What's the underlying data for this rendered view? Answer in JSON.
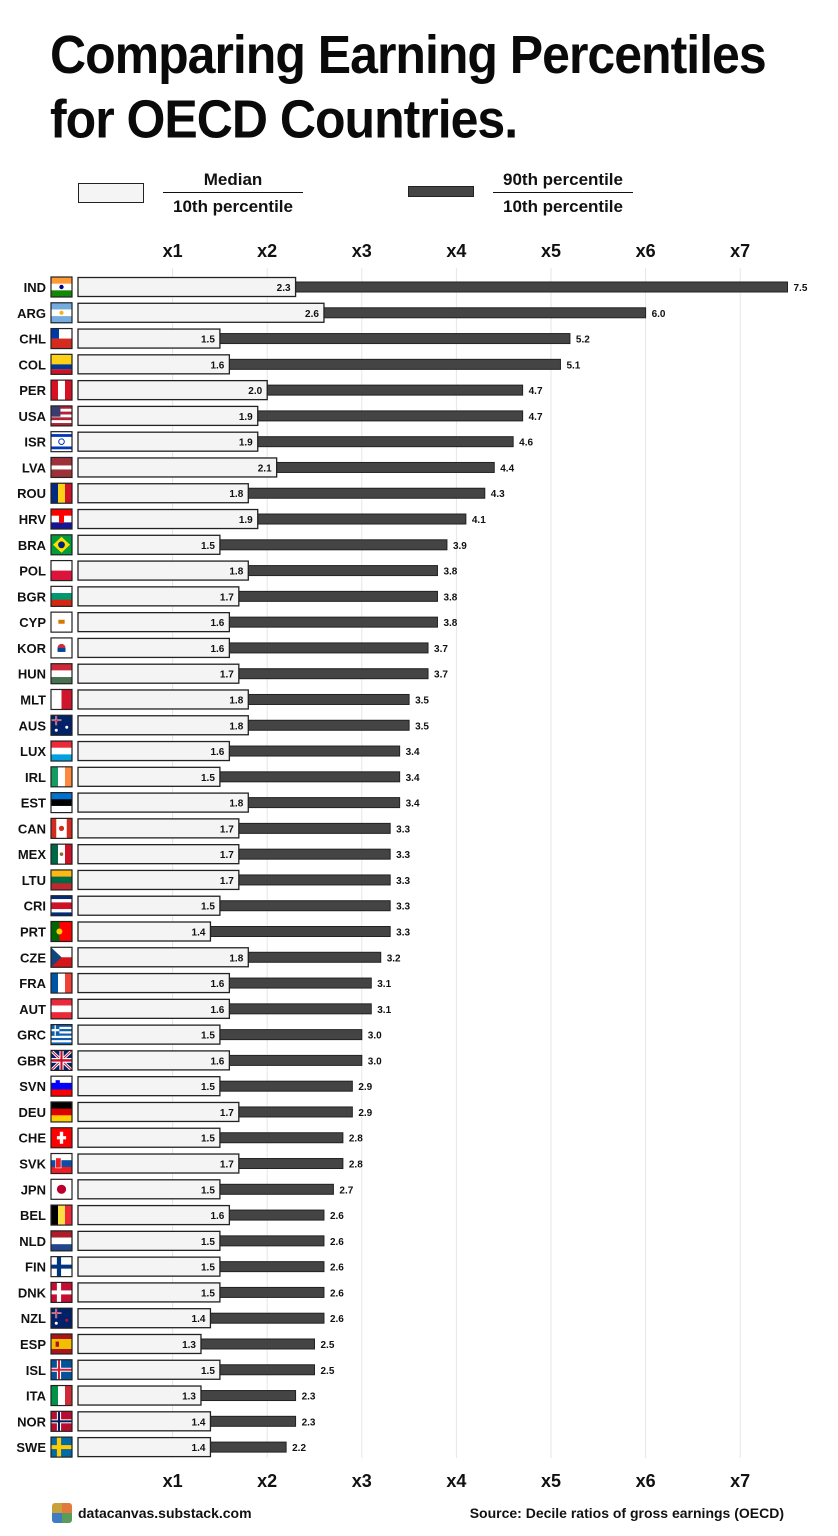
{
  "title": "Comparing Earning Percentiles for OECD Countries.",
  "legend": {
    "median": {
      "numerator": "Median",
      "denominator": "10th percentile"
    },
    "p90": {
      "numerator": "90th percentile",
      "denominator": "10th percentile"
    }
  },
  "colors": {
    "median_fill": "#f4f4f4",
    "p90_fill": "#444444",
    "outline": "#222222",
    "grid": "#e6e6e6"
  },
  "footer": {
    "site": "datacanvas.substack.com",
    "source": "Source: Decile ratios of gross earnings (OECD)"
  },
  "chart_data": {
    "type": "bar",
    "orientation": "horizontal",
    "xlim": [
      0.0,
      7.6
    ],
    "x_ticks": [
      "x1",
      "x2",
      "x3",
      "x4",
      "x5",
      "x6",
      "x7"
    ],
    "x_tick_values": [
      1,
      2,
      3,
      4,
      5,
      6,
      7
    ],
    "grid": true,
    "axis_labels_position": "top and bottom",
    "categories": [
      "IND",
      "ARG",
      "CHL",
      "COL",
      "PER",
      "USA",
      "ISR",
      "LVA",
      "ROU",
      "HRV",
      "BRA",
      "POL",
      "BGR",
      "CYP",
      "KOR",
      "HUN",
      "MLT",
      "AUS",
      "LUX",
      "IRL",
      "EST",
      "CAN",
      "MEX",
      "LTU",
      "CRI",
      "PRT",
      "CZE",
      "FRA",
      "AUT",
      "GRC",
      "GBR",
      "SVN",
      "DEU",
      "CHE",
      "SVK",
      "JPN",
      "BEL",
      "NLD",
      "FIN",
      "DNK",
      "NZL",
      "ESP",
      "ISL",
      "ITA",
      "NOR",
      "SWE"
    ],
    "series": [
      {
        "name": "Median / 10th percentile",
        "values": [
          2.3,
          2.6,
          1.5,
          1.6,
          2.0,
          1.9,
          1.9,
          2.1,
          1.8,
          1.9,
          1.5,
          1.8,
          1.7,
          1.6,
          1.6,
          1.7,
          1.8,
          1.8,
          1.6,
          1.5,
          1.8,
          1.7,
          1.7,
          1.7,
          1.5,
          1.4,
          1.8,
          1.6,
          1.6,
          1.5,
          1.6,
          1.5,
          1.7,
          1.5,
          1.7,
          1.5,
          1.6,
          1.5,
          1.5,
          1.5,
          1.4,
          1.3,
          1.5,
          1.3,
          1.4,
          1.4
        ]
      },
      {
        "name": "90th percentile / 10th percentile",
        "values": [
          7.5,
          6.0,
          5.2,
          5.1,
          4.7,
          4.7,
          4.6,
          4.4,
          4.3,
          4.1,
          3.9,
          3.8,
          3.8,
          3.8,
          3.7,
          3.7,
          3.5,
          3.5,
          3.4,
          3.4,
          3.4,
          3.3,
          3.3,
          3.3,
          3.3,
          3.3,
          3.2,
          3.1,
          3.1,
          3.0,
          3.0,
          2.9,
          2.9,
          2.8,
          2.8,
          2.7,
          2.6,
          2.6,
          2.6,
          2.6,
          2.6,
          2.5,
          2.5,
          2.3,
          2.3,
          2.2
        ]
      }
    ],
    "flags": [
      "india-flag-icon",
      "argentina-flag-icon",
      "chile-flag-icon",
      "colombia-flag-icon",
      "peru-flag-icon",
      "usa-flag-icon",
      "israel-flag-icon",
      "latvia-flag-icon",
      "romania-flag-icon",
      "croatia-flag-icon",
      "brazil-flag-icon",
      "poland-flag-icon",
      "bulgaria-flag-icon",
      "cyprus-flag-icon",
      "korea-flag-icon",
      "hungary-flag-icon",
      "malta-flag-icon",
      "australia-flag-icon",
      "luxembourg-flag-icon",
      "ireland-flag-icon",
      "estonia-flag-icon",
      "canada-flag-icon",
      "mexico-flag-icon",
      "lithuania-flag-icon",
      "costa-rica-flag-icon",
      "portugal-flag-icon",
      "czechia-flag-icon",
      "france-flag-icon",
      "austria-flag-icon",
      "greece-flag-icon",
      "uk-flag-icon",
      "slovenia-flag-icon",
      "germany-flag-icon",
      "switzerland-flag-icon",
      "slovakia-flag-icon",
      "japan-flag-icon",
      "belgium-flag-icon",
      "netherlands-flag-icon",
      "finland-flag-icon",
      "denmark-flag-icon",
      "new-zealand-flag-icon",
      "spain-flag-icon",
      "iceland-flag-icon",
      "italy-flag-icon",
      "norway-flag-icon",
      "sweden-flag-icon"
    ]
  }
}
